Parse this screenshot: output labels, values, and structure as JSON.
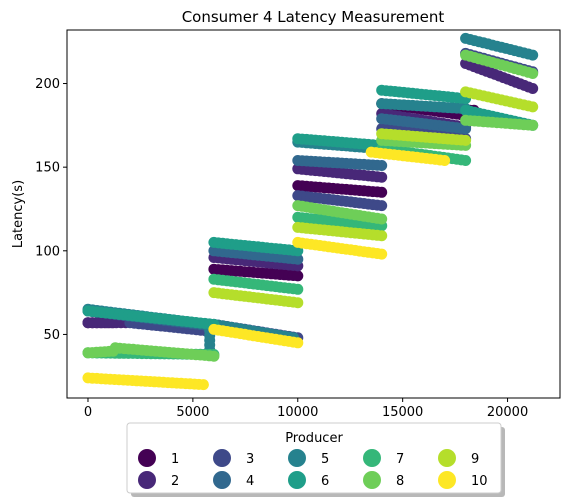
{
  "chart_data": {
    "type": "scatter",
    "title": "Consumer 4 Latency Measurement",
    "xlabel": "",
    "ylabel": "Latency(s)",
    "xlim": [
      -1000,
      22500
    ],
    "ylim": [
      12,
      232
    ],
    "xticks": [
      0,
      5000,
      10000,
      15000,
      20000
    ],
    "yticks": [
      50,
      100,
      150,
      200
    ],
    "legend": {
      "title": "Producer",
      "placement": "bottom-center"
    },
    "series": [
      {
        "name": "1",
        "color": "#440154",
        "segments": [
          [
            0,
            57,
            1200,
            57
          ],
          [
            6000,
            89,
            10000,
            85
          ],
          [
            10000,
            139,
            14000,
            135
          ],
          [
            14000,
            188,
            18000,
            181
          ],
          [
            18000,
            184,
            18400,
            184
          ]
        ]
      },
      {
        "name": "2",
        "color": "#482878",
        "segments": [
          [
            0,
            57,
            1800,
            57
          ],
          [
            6000,
            96,
            10000,
            91
          ],
          [
            10000,
            149,
            14000,
            144
          ],
          [
            14000,
            182,
            18000,
            174
          ],
          [
            18000,
            212,
            21200,
            197
          ]
        ]
      },
      {
        "name": "3",
        "color": "#3e4989",
        "segments": [
          [
            2000,
            57,
            5800,
            52
          ],
          [
            6000,
            56,
            10000,
            48
          ],
          [
            10000,
            133,
            14000,
            127
          ],
          [
            14000,
            173,
            18000,
            167
          ],
          [
            18000,
            218,
            21200,
            207
          ]
        ]
      },
      {
        "name": "4",
        "color": "#31688e",
        "segments": [
          [
            0,
            64,
            6000,
            55
          ],
          [
            6000,
            100,
            10000,
            95
          ],
          [
            10000,
            154,
            14000,
            151
          ],
          [
            14000,
            179,
            18000,
            173
          ]
        ]
      },
      {
        "name": "5",
        "color": "#26828e",
        "segments": [
          [
            0,
            65,
            5800,
            56
          ],
          [
            5800,
            55,
            5800,
            38
          ],
          [
            6000,
            56,
            9800,
            48
          ],
          [
            10000,
            165,
            14000,
            161
          ],
          [
            14000,
            188,
            18000,
            185
          ],
          [
            18000,
            227,
            21200,
            217
          ]
        ]
      },
      {
        "name": "6",
        "color": "#1f9e89",
        "segments": [
          [
            0,
            64,
            6000,
            56
          ],
          [
            6000,
            105,
            10000,
            100
          ],
          [
            10000,
            167,
            14000,
            163
          ],
          [
            14000,
            196,
            18000,
            191
          ],
          [
            18000,
            184,
            21200,
            175
          ]
        ]
      },
      {
        "name": "7",
        "color": "#35b779",
        "segments": [
          [
            0,
            39,
            6000,
            38
          ],
          [
            6000,
            83,
            10000,
            77
          ],
          [
            10000,
            120,
            14000,
            115
          ],
          [
            14000,
            161,
            18000,
            154
          ]
        ]
      },
      {
        "name": "8",
        "color": "#6ece58",
        "segments": [
          [
            0,
            39,
            1200,
            40
          ],
          [
            1300,
            42,
            6000,
            37
          ],
          [
            10000,
            127,
            14000,
            119
          ],
          [
            14000,
            166,
            18000,
            163
          ],
          [
            18000,
            178,
            21200,
            175
          ],
          [
            18000,
            217,
            21200,
            206
          ]
        ]
      },
      {
        "name": "9",
        "color": "#b5de2b",
        "segments": [
          [
            6000,
            75,
            10000,
            69
          ],
          [
            10000,
            114,
            14000,
            109
          ],
          [
            14000,
            170,
            18000,
            166
          ],
          [
            18000,
            195,
            21200,
            186
          ]
        ]
      },
      {
        "name": "10",
        "color": "#fde725",
        "segments": [
          [
            0,
            24,
            5500,
            20
          ],
          [
            6000,
            53,
            10000,
            45
          ],
          [
            10000,
            105,
            14000,
            98
          ],
          [
            13500,
            159,
            17000,
            154
          ]
        ]
      }
    ]
  }
}
